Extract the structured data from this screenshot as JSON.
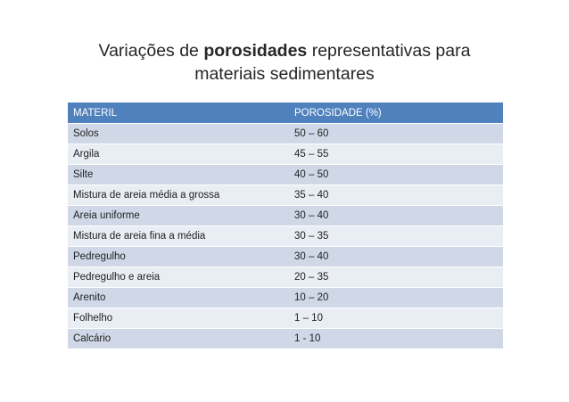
{
  "title": {
    "line1_pre": "Variações de ",
    "line1_bold": "porosidades",
    "line1_post": " representativas para",
    "line2": "materiais sedimentares"
  },
  "table": {
    "headers": [
      "MATERIL",
      "POROSIDADE (%)"
    ],
    "rows": [
      [
        "Solos",
        "50 – 60"
      ],
      [
        "Argila",
        "45 – 55"
      ],
      [
        "Silte",
        "40 – 50"
      ],
      [
        "Mistura de areia média a grossa",
        "35 – 40"
      ],
      [
        "Areia uniforme",
        "30 – 40"
      ],
      [
        "Mistura de areia fina a média",
        "30 – 35"
      ],
      [
        "Pedregulho",
        "30 – 40"
      ],
      [
        "Pedregulho e areia",
        "20 – 35"
      ],
      [
        "Arenito",
        "10 – 20"
      ],
      [
        "Folhelho",
        "1 – 10"
      ],
      [
        "Calcário",
        "1 - 10"
      ]
    ]
  },
  "colors": {
    "header_bg": "#4f81bd",
    "row_odd_bg": "#d0d8e8",
    "row_even_bg": "#e9edf4"
  }
}
